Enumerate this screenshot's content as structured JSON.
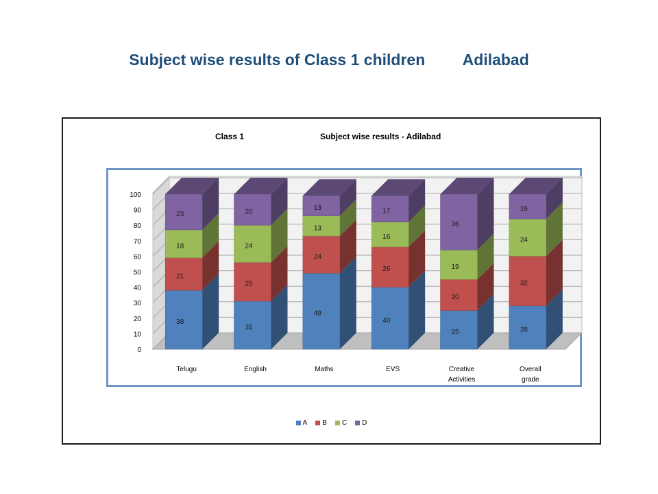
{
  "slide": {
    "title": "Subject wise results of Class 1 children",
    "place": "Adilabad"
  },
  "chart_data": {
    "type": "bar",
    "stacked": true,
    "title_left": "Class 1",
    "title_right": "Subject wise results - Adilabad",
    "categories": [
      "Telugu",
      "English",
      "Maths",
      "EVS",
      "Creative Activities",
      "Overall grade"
    ],
    "series": [
      {
        "name": "A",
        "values": [
          38,
          31,
          49,
          40,
          25,
          28
        ],
        "color": "#4f81bd"
      },
      {
        "name": "B",
        "values": [
          21,
          25,
          24,
          26,
          20,
          32
        ],
        "color": "#c0504d"
      },
      {
        "name": "C",
        "values": [
          18,
          24,
          13,
          16,
          19,
          24
        ],
        "color": "#9bbb59"
      },
      {
        "name": "D",
        "values": [
          23,
          20,
          13,
          17,
          36,
          16
        ],
        "color": "#8064a2"
      }
    ],
    "yticks": [
      0,
      10,
      20,
      30,
      40,
      50,
      60,
      70,
      80,
      90,
      100
    ],
    "ylim": [
      0,
      100
    ],
    "grid": true,
    "legend": "bottom",
    "three_d": true
  }
}
